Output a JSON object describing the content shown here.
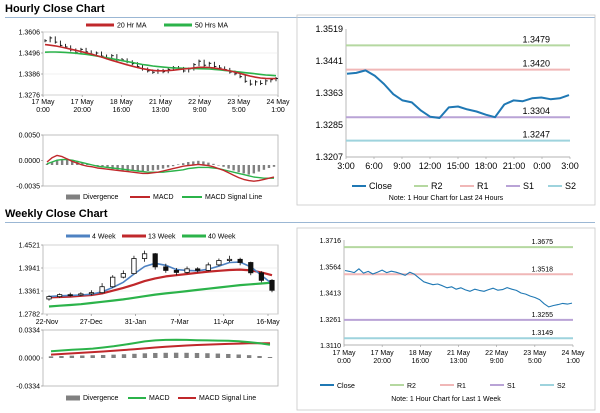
{
  "titles": {
    "hourly": "Hourly Close Chart",
    "weekly": "Weekly Close Chart"
  },
  "colors": {
    "ma20": "#c0282b",
    "ma50": "#2bb34a",
    "ma4": "#4e82c2",
    "ma13": "#c0282b",
    "ma40": "#2bb34a",
    "divergence": "#808080",
    "close": "#1f78b4",
    "r2": "#b5d8a0",
    "r1": "#f0b7b7",
    "s1": "#b9a3d6",
    "s2": "#9ed3dd",
    "panel_border": "#b0b0b0"
  },
  "chart_data": [
    {
      "id": "hourly-ma",
      "type": "line",
      "legend": [
        "20 Hr MA",
        "50 Hrs MA"
      ],
      "yticks": [
        "1.3606",
        "1.3496",
        "1.3386",
        "1.3276"
      ],
      "ylim": [
        1.3276,
        1.3606
      ],
      "xticks": [
        [
          "17 May",
          "0:00"
        ],
        [
          "17 May",
          "20:00"
        ],
        [
          "18 May",
          "16:00"
        ],
        [
          "21 May",
          "13:00"
        ],
        [
          "22 May",
          "9:00"
        ],
        [
          "23 May",
          "5:00"
        ],
        [
          "24 May",
          "1:00"
        ]
      ],
      "close": [
        1.356,
        1.3575,
        1.3553,
        1.3536,
        1.3528,
        1.3512,
        1.3498,
        1.3515,
        1.3502,
        1.349,
        1.3496,
        1.348,
        1.347,
        1.3482,
        1.3462,
        1.346,
        1.345,
        1.344,
        1.3425,
        1.3412,
        1.3402,
        1.3395,
        1.3405,
        1.3398,
        1.341,
        1.342,
        1.3415,
        1.3402,
        1.3412,
        1.3435,
        1.3453,
        1.3432,
        1.3442,
        1.3425,
        1.3418,
        1.341,
        1.3396,
        1.3387,
        1.3372,
        1.3348,
        1.3333,
        1.3345,
        1.3336,
        1.335,
        1.3356,
        1.3362
      ],
      "ma_short": [
        1.354,
        1.3537,
        1.3533,
        1.3528,
        1.3522,
        1.3516,
        1.351,
        1.3504,
        1.3497,
        1.349,
        1.3483,
        1.3475,
        1.3466,
        1.3458,
        1.345,
        1.3442,
        1.3434,
        1.3427,
        1.342,
        1.3414,
        1.3409,
        1.3405,
        1.3403,
        1.3403,
        1.3404,
        1.3406,
        1.3409,
        1.3412,
        1.3415,
        1.3418,
        1.3421,
        1.3421,
        1.342,
        1.3417,
        1.3413,
        1.3408,
        1.3402,
        1.3396,
        1.3389,
        1.3382,
        1.3375,
        1.3369,
        1.3365,
        1.3363,
        1.3362,
        1.3362
      ],
      "ma_long": [
        1.35,
        1.3501,
        1.3501,
        1.35,
        1.3499,
        1.3497,
        1.3495,
        1.3492,
        1.3489,
        1.3485,
        1.3481,
        1.3476,
        1.3471,
        1.3466,
        1.3461,
        1.3456,
        1.3451,
        1.3446,
        1.3441,
        1.3436,
        1.3432,
        1.3428,
        1.3425,
        1.3422,
        1.342,
        1.3418,
        1.3417,
        1.3416,
        1.3415,
        1.3415,
        1.3414,
        1.3413,
        1.3412,
        1.341,
        1.3408,
        1.3405,
        1.3402,
        1.3399,
        1.3396,
        1.3393,
        1.339,
        1.3387,
        1.3384,
        1.3381,
        1.3379,
        1.3377
      ]
    },
    {
      "id": "hourly-macd",
      "type": "bar",
      "legend": [
        "Divergence",
        "MACD",
        "MACD Signal Line"
      ],
      "yticks": [
        "0.0050",
        "0.0000",
        "-0.0035"
      ],
      "ylim": [
        -0.0035,
        0.005
      ],
      "divergence": [
        0.0002,
        0.0005,
        0.0008,
        0.001,
        0.0011,
        0.0009,
        0.0007,
        0.0004,
        0.0002,
        0.0,
        -0.0002,
        -0.0004,
        -0.0005,
        -0.0007,
        -0.0008,
        -0.0009,
        -0.001,
        -0.001,
        -0.0011,
        -0.0011,
        -0.001,
        -0.0009,
        -0.0008,
        -0.0006,
        -0.0004,
        -0.0002,
        0.0001,
        0.0003,
        0.0005,
        0.0006,
        0.0007,
        0.0006,
        0.0004,
        0.0002,
        0.0,
        -0.0003,
        -0.0006,
        -0.0009,
        -0.0012,
        -0.0014,
        -0.0016,
        -0.0014,
        -0.0011,
        -0.0008,
        -0.0005,
        -0.0003
      ],
      "macd": [
        0.0005,
        0.0012,
        0.0016,
        0.0014,
        0.001,
        0.0006,
        0.0003,
        0.0,
        -0.0002,
        -0.0003,
        -0.0005,
        -0.0006,
        -0.0007,
        -0.0008,
        -0.0009,
        -0.001,
        -0.0011,
        -0.0012,
        -0.0013,
        -0.0014,
        -0.0014,
        -0.0013,
        -0.0012,
        -0.001,
        -0.0008,
        -0.0006,
        -0.0004,
        -0.0002,
        -0.0001,
        0.0,
        0.0001,
        0.0,
        -0.0001,
        -0.0003,
        -0.0006,
        -0.0009,
        -0.0013,
        -0.0017,
        -0.0021,
        -0.0024,
        -0.0026,
        -0.0027,
        -0.0026,
        -0.0024,
        -0.0022,
        -0.002
      ],
      "signal": [
        0.0002,
        0.0005,
        0.0008,
        0.0009,
        0.0009,
        0.0008,
        0.0006,
        0.0004,
        0.0002,
        0.0,
        -0.0002,
        -0.0003,
        -0.0004,
        -0.0005,
        -0.0006,
        -0.0007,
        -0.0008,
        -0.0009,
        -0.001,
        -0.0011,
        -0.0012,
        -0.0012,
        -0.0012,
        -0.0012,
        -0.0011,
        -0.001,
        -0.0009,
        -0.0008,
        -0.0006,
        -0.0005,
        -0.0004,
        -0.0004,
        -0.0004,
        -0.0005,
        -0.0006,
        -0.0008,
        -0.001,
        -0.0012,
        -0.0014,
        -0.0016,
        -0.0018,
        -0.002,
        -0.0021,
        -0.0022,
        -0.0022,
        -0.0022
      ]
    },
    {
      "id": "hourly-close",
      "type": "line",
      "ylim": [
        1.3207,
        1.3519
      ],
      "yticks": [
        "1.3519",
        "1.3441",
        "1.3363",
        "1.3285",
        "1.3207"
      ],
      "xticks": [
        "3:00",
        "6:00",
        "9:00",
        "12:00",
        "15:00",
        "18:00",
        "21:00",
        "0:00",
        "3:00"
      ],
      "x": [
        0,
        1,
        2,
        3,
        4,
        5,
        6,
        7,
        8,
        9,
        10,
        11,
        12,
        13,
        14,
        15,
        16,
        17,
        18,
        19,
        20,
        21,
        22,
        23,
        24
      ],
      "close": [
        1.341,
        1.3412,
        1.3418,
        1.3405,
        1.3385,
        1.336,
        1.3345,
        1.334,
        1.332,
        1.3305,
        1.3302,
        1.3328,
        1.333,
        1.3323,
        1.3318,
        1.331,
        1.3304,
        1.3335,
        1.3345,
        1.3343,
        1.335,
        1.3352,
        1.3348,
        1.335,
        1.3358
      ],
      "levels": [
        {
          "name": "R2",
          "value": 1.3479,
          "label": "1.3479"
        },
        {
          "name": "R1",
          "value": 1.342,
          "label": "1.3420"
        },
        {
          "name": "S1",
          "value": 1.3304,
          "label": "1.3304"
        },
        {
          "name": "S2",
          "value": 1.3247,
          "label": "1.3247"
        }
      ],
      "legend": [
        "Close",
        "R2",
        "R1",
        "S1",
        "S2"
      ],
      "note": "Note: 1 Hour Chart for Last 24 Hours"
    },
    {
      "id": "weekly-ma",
      "type": "line",
      "legend": [
        "4 Week",
        "13 Week",
        "40 Week"
      ],
      "yticks": [
        "1.4521",
        "1.3941",
        "1.3361",
        "1.2782"
      ],
      "ylim": [
        1.2782,
        1.4521
      ],
      "xticks": [
        "22-Nov",
        "27-Dec",
        "31-Jan",
        "7-Mar",
        "11-Apr",
        "16-May"
      ],
      "close": [
        1.319,
        1.327,
        1.326,
        1.329,
        1.332,
        1.347,
        1.371,
        1.38,
        1.418,
        1.43,
        1.397,
        1.388,
        1.383,
        1.392,
        1.388,
        1.402,
        1.413,
        1.416,
        1.408,
        1.382,
        1.363,
        1.338
      ],
      "ma_short": [
        1.322,
        1.324,
        1.325,
        1.326,
        1.328,
        1.334,
        1.345,
        1.358,
        1.379,
        1.398,
        1.406,
        1.401,
        1.39,
        1.388,
        1.387,
        1.391,
        1.399,
        1.408,
        1.409,
        1.397,
        1.376,
        1.354
      ],
      "ma_long": [
        1.32,
        1.321,
        1.322,
        1.324,
        1.326,
        1.33,
        1.337,
        1.344,
        1.352,
        1.361,
        1.368,
        1.373,
        1.376,
        1.379,
        1.382,
        1.385,
        1.387,
        1.389,
        1.39,
        1.388,
        1.383,
        1.376
      ],
      "ma_40": [
        1.297,
        1.299,
        1.301,
        1.303,
        1.306,
        1.309,
        1.312,
        1.315,
        1.319,
        1.323,
        1.327,
        1.33,
        1.333,
        1.336,
        1.339,
        1.342,
        1.345,
        1.348,
        1.351,
        1.353,
        1.355,
        1.357
      ],
      "candles": [
        [
          1.316,
          1.325,
          1.312,
          1.322
        ],
        [
          1.322,
          1.33,
          1.319,
          1.327
        ],
        [
          1.327,
          1.332,
          1.322,
          1.326
        ],
        [
          1.326,
          1.333,
          1.323,
          1.329
        ],
        [
          1.329,
          1.338,
          1.325,
          1.332
        ],
        [
          1.332,
          1.356,
          1.33,
          1.347
        ],
        [
          1.347,
          1.376,
          1.344,
          1.371
        ],
        [
          1.371,
          1.388,
          1.368,
          1.38
        ],
        [
          1.38,
          1.425,
          1.378,
          1.418
        ],
        [
          1.418,
          1.438,
          1.41,
          1.43
        ],
        [
          1.43,
          1.432,
          1.39,
          1.397
        ],
        [
          1.397,
          1.405,
          1.382,
          1.388
        ],
        [
          1.388,
          1.394,
          1.376,
          1.383
        ],
        [
          1.383,
          1.398,
          1.38,
          1.392
        ],
        [
          1.392,
          1.396,
          1.383,
          1.388
        ],
        [
          1.388,
          1.408,
          1.386,
          1.402
        ],
        [
          1.402,
          1.418,
          1.399,
          1.413
        ],
        [
          1.413,
          1.425,
          1.409,
          1.416
        ],
        [
          1.416,
          1.42,
          1.401,
          1.408
        ],
        [
          1.408,
          1.41,
          1.376,
          1.382
        ],
        [
          1.382,
          1.386,
          1.358,
          1.363
        ],
        [
          1.363,
          1.366,
          1.333,
          1.338
        ]
      ]
    },
    {
      "id": "weekly-macd",
      "type": "bar",
      "legend": [
        "Divergence",
        "MACD",
        "MACD Signal Line"
      ],
      "yticks": [
        "0.0334",
        "0.0000",
        "-0.0334"
      ],
      "ylim": [
        -0.0334,
        0.0334
      ],
      "divergence": [
        0.002,
        0.0024,
        0.0028,
        0.003,
        0.0033,
        0.0036,
        0.004,
        0.0045,
        0.005,
        0.0056,
        0.006,
        0.0062,
        0.0063,
        0.0062,
        0.006,
        0.0057,
        0.0053,
        0.0048,
        0.0042,
        0.0034,
        0.0024,
        0.0012
      ],
      "macd": [
        0.008,
        0.009,
        0.0098,
        0.0105,
        0.0112,
        0.0125,
        0.014,
        0.0158,
        0.0178,
        0.0198,
        0.021,
        0.0216,
        0.0218,
        0.0216,
        0.0212,
        0.021,
        0.0208,
        0.0205,
        0.02,
        0.019,
        0.0175,
        0.0158
      ],
      "signal": [
        0.004,
        0.0048,
        0.0055,
        0.0062,
        0.007,
        0.0078,
        0.0086,
        0.0095,
        0.0105,
        0.0115,
        0.0125,
        0.0134,
        0.0142,
        0.0149,
        0.0155,
        0.016,
        0.0164,
        0.0168,
        0.0172,
        0.0175,
        0.0176,
        0.0176
      ]
    },
    {
      "id": "weekly-close",
      "type": "line",
      "ylim": [
        1.311,
        1.3716
      ],
      "yticks": [
        "1.3716",
        "1.3564",
        "1.3413",
        "1.3261",
        "1.3110"
      ],
      "xticks": [
        [
          "17 May",
          "0:00"
        ],
        [
          "17 May",
          "20:00"
        ],
        [
          "18 May",
          "16:00"
        ],
        [
          "21 May",
          "13:00"
        ],
        [
          "22 May",
          "9:00"
        ],
        [
          "23 May",
          "5:00"
        ],
        [
          "24 May",
          "1:00"
        ]
      ],
      "close": [
        1.354,
        1.3535,
        1.3528,
        1.355,
        1.3525,
        1.3535,
        1.352,
        1.353,
        1.3542,
        1.3528,
        1.3536,
        1.353,
        1.3522,
        1.3512,
        1.353,
        1.3518,
        1.3496,
        1.3475,
        1.3466,
        1.3458,
        1.3462,
        1.3452,
        1.344,
        1.3446,
        1.3432,
        1.344,
        1.3428,
        1.342,
        1.3432,
        1.3425,
        1.342,
        1.343,
        1.3438,
        1.3426,
        1.343,
        1.3441,
        1.3432,
        1.3425,
        1.341,
        1.3404,
        1.3392,
        1.3384,
        1.3372,
        1.3348,
        1.333,
        1.3338,
        1.3343,
        1.335,
        1.3346,
        1.3352
      ],
      "levels": [
        {
          "name": "R2",
          "value": 1.3675,
          "label": "1.3675"
        },
        {
          "name": "R1",
          "value": 1.3518,
          "label": "1.3518"
        },
        {
          "name": "S1",
          "value": 1.3255,
          "label": "1.3255"
        },
        {
          "name": "S2",
          "value": 1.3149,
          "label": "1.3149"
        }
      ],
      "legend": [
        "Close",
        "R2",
        "R1",
        "S1",
        "S2"
      ],
      "note": "Note: 1 Hour Chart for Last 1 Week"
    }
  ]
}
